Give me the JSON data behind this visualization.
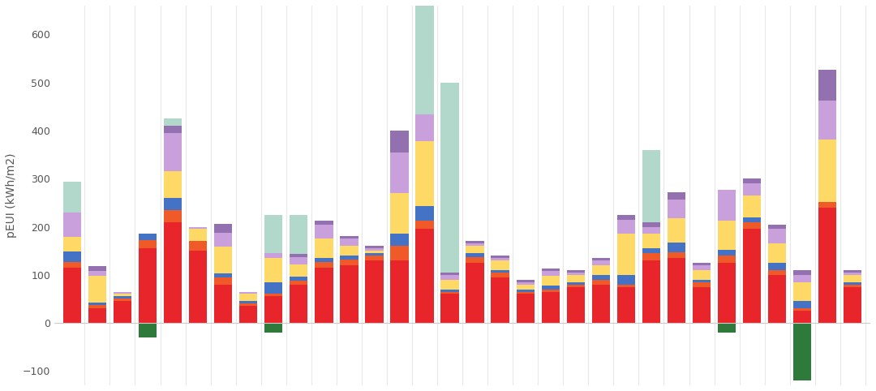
{
  "ylabel": "pEUI (kWh/m2)",
  "background_color": "#ffffff",
  "grid_color": "#e8e8e8",
  "ylim": [
    -130,
    660
  ],
  "yticks": [
    -100,
    0,
    100,
    200,
    300,
    400,
    500,
    600
  ],
  "colors": {
    "red": "#e8252a",
    "orange": "#f05a28",
    "blue": "#4472c4",
    "yellow": "#ffd966",
    "purple_light": "#c9a0dc",
    "purple_dark": "#9370b0",
    "mint": "#b2d8cc",
    "dark_green": "#2d7a3a"
  },
  "bars": [
    {
      "red": 115,
      "orange": 12,
      "blue": 22,
      "yellow": 30,
      "purple_light": 50,
      "purple_dark": 0,
      "mint": 65,
      "green": 0
    },
    {
      "red": 30,
      "orange": 8,
      "blue": 5,
      "yellow": 55,
      "purple_light": 10,
      "purple_dark": 10,
      "mint": 0,
      "green": 0
    },
    {
      "red": 45,
      "orange": 5,
      "blue": 5,
      "yellow": 5,
      "purple_light": 5,
      "purple_dark": 0,
      "mint": 0,
      "green": 0
    },
    {
      "red": 155,
      "orange": 18,
      "blue": 12,
      "yellow": 0,
      "purple_light": 0,
      "purple_dark": 0,
      "mint": 0,
      "green": -30
    },
    {
      "red": 210,
      "orange": 25,
      "blue": 25,
      "yellow": 55,
      "purple_light": 80,
      "purple_dark": 15,
      "mint": 15,
      "green": 0
    },
    {
      "red": 150,
      "orange": 20,
      "blue": 0,
      "yellow": 25,
      "purple_light": 5,
      "purple_dark": 0,
      "mint": 0,
      "green": 0
    },
    {
      "red": 80,
      "orange": 15,
      "blue": 8,
      "yellow": 55,
      "purple_light": 30,
      "purple_dark": 18,
      "mint": 0,
      "green": 0
    },
    {
      "red": 35,
      "orange": 5,
      "blue": 5,
      "yellow": 15,
      "purple_light": 5,
      "purple_dark": 0,
      "mint": 0,
      "green": 0
    },
    {
      "red": 55,
      "orange": 5,
      "blue": 25,
      "yellow": 50,
      "purple_light": 10,
      "purple_dark": 0,
      "mint": 80,
      "green": -20
    },
    {
      "red": 80,
      "orange": 8,
      "blue": 8,
      "yellow": 25,
      "purple_light": 15,
      "purple_dark": 8,
      "mint": 80,
      "green": 0
    },
    {
      "red": 115,
      "orange": 12,
      "blue": 8,
      "yellow": 40,
      "purple_light": 30,
      "purple_dark": 8,
      "mint": 0,
      "green": 0
    },
    {
      "red": 120,
      "orange": 12,
      "blue": 8,
      "yellow": 20,
      "purple_light": 15,
      "purple_dark": 5,
      "mint": 0,
      "green": 0
    },
    {
      "red": 130,
      "orange": 10,
      "blue": 5,
      "yellow": 5,
      "purple_light": 5,
      "purple_dark": 5,
      "mint": 0,
      "green": 0
    },
    {
      "red": 130,
      "orange": 30,
      "blue": 25,
      "yellow": 85,
      "purple_light": 85,
      "purple_dark": 45,
      "mint": 0,
      "green": 0
    },
    {
      "red": 195,
      "orange": 18,
      "blue": 30,
      "yellow": 135,
      "purple_light": 55,
      "purple_dark": 0,
      "mint": 610,
      "green": 0
    },
    {
      "red": 60,
      "orange": 5,
      "blue": 5,
      "yellow": 20,
      "purple_light": 10,
      "purple_dark": 5,
      "mint": 395,
      "green": 0
    },
    {
      "red": 125,
      "orange": 12,
      "blue": 8,
      "yellow": 15,
      "purple_light": 5,
      "purple_dark": 5,
      "mint": 0,
      "green": 0
    },
    {
      "red": 95,
      "orange": 10,
      "blue": 5,
      "yellow": 20,
      "purple_light": 5,
      "purple_dark": 5,
      "mint": 0,
      "green": 0
    },
    {
      "red": 60,
      "orange": 5,
      "blue": 5,
      "yellow": 10,
      "purple_light": 5,
      "purple_dark": 5,
      "mint": 0,
      "green": 0
    },
    {
      "red": 65,
      "orange": 5,
      "blue": 8,
      "yellow": 20,
      "purple_light": 10,
      "purple_dark": 5,
      "mint": 0,
      "green": 0
    },
    {
      "red": 75,
      "orange": 5,
      "blue": 5,
      "yellow": 15,
      "purple_light": 5,
      "purple_dark": 5,
      "mint": 0,
      "green": 0
    },
    {
      "red": 80,
      "orange": 10,
      "blue": 10,
      "yellow": 20,
      "purple_light": 10,
      "purple_dark": 5,
      "mint": 0,
      "green": 0
    },
    {
      "red": 75,
      "orange": 5,
      "blue": 20,
      "yellow": 85,
      "purple_light": 30,
      "purple_dark": 10,
      "mint": 0,
      "green": 0
    },
    {
      "red": 130,
      "orange": 15,
      "blue": 10,
      "yellow": 30,
      "purple_light": 15,
      "purple_dark": 10,
      "mint": 150,
      "green": 0
    },
    {
      "red": 135,
      "orange": 12,
      "blue": 20,
      "yellow": 50,
      "purple_light": 40,
      "purple_dark": 15,
      "mint": 0,
      "green": 0
    },
    {
      "red": 75,
      "orange": 10,
      "blue": 5,
      "yellow": 20,
      "purple_light": 10,
      "purple_dark": 5,
      "mint": 0,
      "green": 0
    },
    {
      "red": 125,
      "orange": 15,
      "blue": 12,
      "yellow": 60,
      "purple_light": 65,
      "purple_dark": 0,
      "mint": 0,
      "green": -20
    },
    {
      "red": 195,
      "orange": 15,
      "blue": 10,
      "yellow": 45,
      "purple_light": 25,
      "purple_dark": 10,
      "mint": 0,
      "green": 0
    },
    {
      "red": 100,
      "orange": 10,
      "blue": 15,
      "yellow": 40,
      "purple_light": 30,
      "purple_dark": 10,
      "mint": 0,
      "green": 0
    },
    {
      "red": 25,
      "orange": 5,
      "blue": 15,
      "yellow": 40,
      "purple_light": 15,
      "purple_dark": 10,
      "mint": 0,
      "green": -120
    },
    {
      "red": 240,
      "orange": 12,
      "blue": 0,
      "yellow": 130,
      "purple_light": 80,
      "purple_dark": 65,
      "mint": 0,
      "green": 0
    },
    {
      "red": 75,
      "orange": 5,
      "blue": 5,
      "yellow": 15,
      "purple_light": 5,
      "purple_dark": 5,
      "mint": 0,
      "green": 0
    }
  ]
}
